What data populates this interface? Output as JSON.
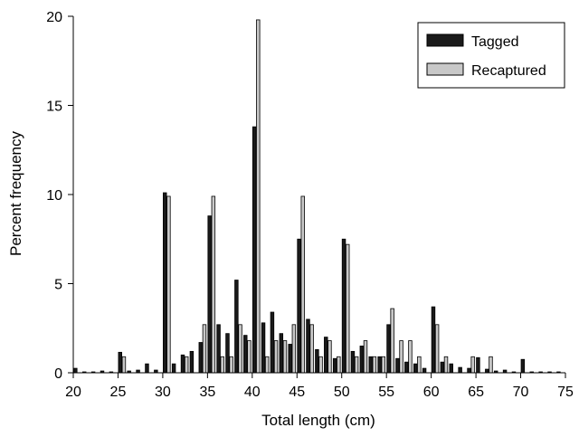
{
  "chart_data": {
    "type": "bar",
    "xlabel": "Total length (cm)",
    "ylabel": "Percent frequency",
    "xlim": [
      20,
      75
    ],
    "ylim": [
      0,
      20
    ],
    "x_ticks": [
      "20",
      "25",
      "30",
      "35",
      "40",
      "45",
      "50",
      "55",
      "60",
      "65",
      "70",
      "75"
    ],
    "y_ticks": [
      "0",
      "5",
      "10",
      "15",
      "20"
    ],
    "grid": false,
    "legend_position": "top-right",
    "x": [
      20,
      21,
      22,
      23,
      24,
      25,
      26,
      27,
      28,
      29,
      30,
      31,
      32,
      33,
      34,
      35,
      36,
      37,
      38,
      39,
      40,
      41,
      42,
      43,
      44,
      45,
      46,
      47,
      48,
      49,
      50,
      51,
      52,
      53,
      54,
      55,
      56,
      57,
      58,
      59,
      60,
      61,
      62,
      63,
      64,
      65,
      66,
      67,
      68,
      69,
      70,
      71,
      72,
      73,
      74
    ],
    "series": [
      {
        "name": "Tagged",
        "color": "#1a1a1a",
        "values": [
          0.25,
          0.05,
          0.05,
          0.1,
          0.05,
          1.15,
          0.1,
          0.15,
          0.5,
          0.15,
          10.1,
          0.5,
          1.0,
          1.2,
          1.7,
          8.8,
          2.7,
          2.2,
          5.2,
          2.1,
          13.8,
          2.8,
          3.4,
          2.2,
          1.6,
          7.5,
          3.0,
          1.3,
          2.0,
          0.8,
          7.5,
          1.2,
          1.5,
          0.9,
          0.9,
          2.7,
          0.8,
          0.6,
          0.5,
          0.25,
          3.7,
          0.6,
          0.5,
          0.3,
          0.25,
          0.85,
          0.2,
          0.1,
          0.15,
          0.05,
          0.75,
          0.05,
          0.05,
          0.05,
          0.05
        ]
      },
      {
        "name": "Recaptured",
        "color": "#c8c8c8",
        "values": [
          0,
          0,
          0,
          0,
          0,
          0.9,
          0,
          0,
          0,
          0,
          9.9,
          0,
          0.9,
          0,
          2.7,
          9.9,
          0.9,
          0.9,
          2.7,
          1.8,
          19.8,
          0.9,
          1.8,
          1.8,
          2.7,
          9.9,
          2.7,
          0.9,
          1.8,
          0.9,
          7.2,
          0.9,
          1.8,
          0.9,
          0.9,
          3.6,
          1.8,
          1.8,
          0.9,
          0,
          2.7,
          0.9,
          0,
          0,
          0.9,
          0,
          0.9,
          0,
          0,
          0,
          0,
          0,
          0,
          0,
          0
        ]
      }
    ]
  }
}
